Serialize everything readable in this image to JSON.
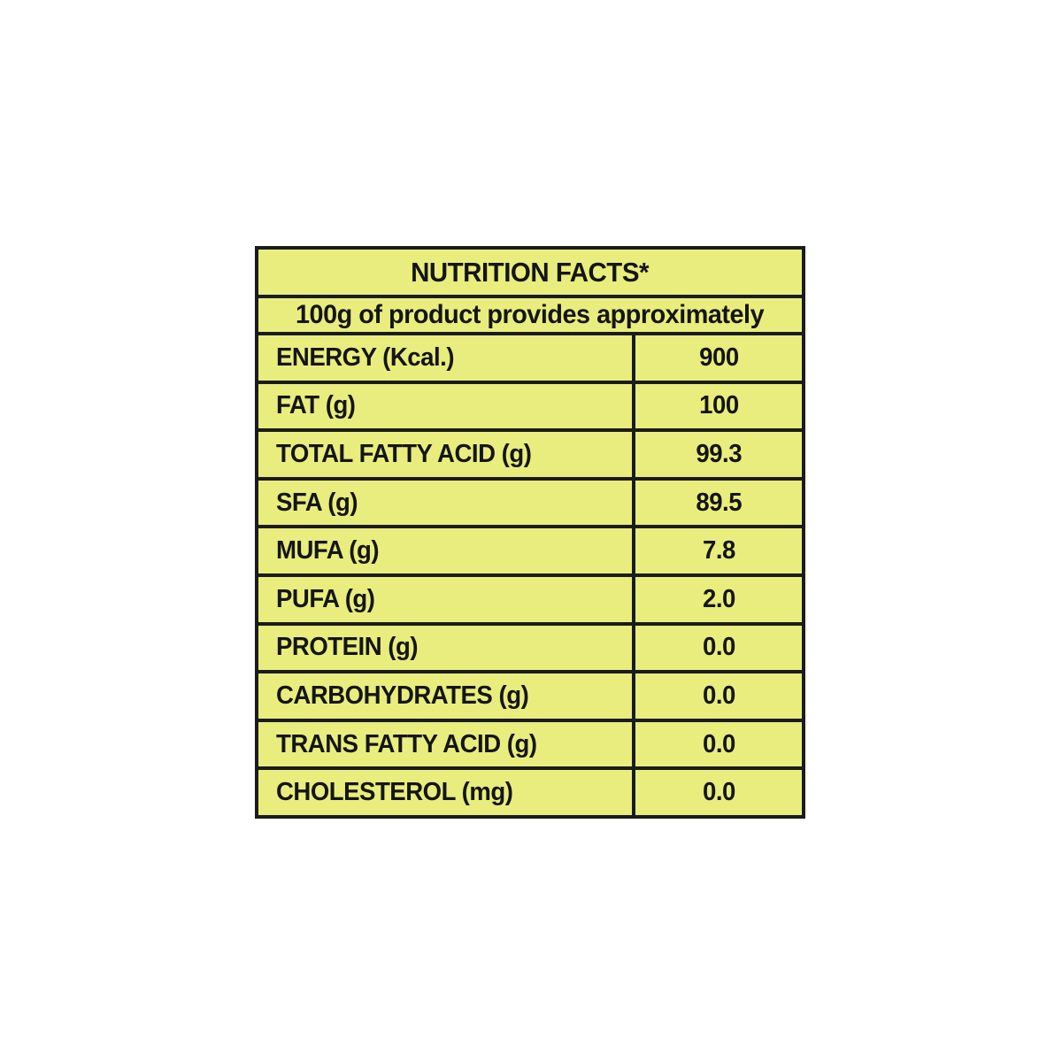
{
  "page": {
    "background_color": "#ffffff"
  },
  "table": {
    "title": "NUTRITION FACTS*",
    "subtitle": "100g of product provides approximately",
    "bg_color": "#e9ed7d",
    "border_color": "#1b1b1b",
    "text_color": "#151515",
    "rows": [
      {
        "label": "ENERGY (Kcal.)",
        "value": "900"
      },
      {
        "label": "FAT (g)",
        "value": "100"
      },
      {
        "label": "TOTAL FATTY ACID (g)",
        "value": "99.3"
      },
      {
        "label": "SFA (g)",
        "value": "89.5"
      },
      {
        "label": "MUFA (g)",
        "value": "7.8"
      },
      {
        "label": "PUFA (g)",
        "value": "2.0"
      },
      {
        "label": "PROTEIN (g)",
        "value": "0.0"
      },
      {
        "label": "CARBOHYDRATES (g)",
        "value": "0.0"
      },
      {
        "label": "TRANS FATTY ACID (g)",
        "value": "0.0"
      },
      {
        "label": "CHOLESTEROL (mg)",
        "value": "0.0"
      }
    ]
  }
}
